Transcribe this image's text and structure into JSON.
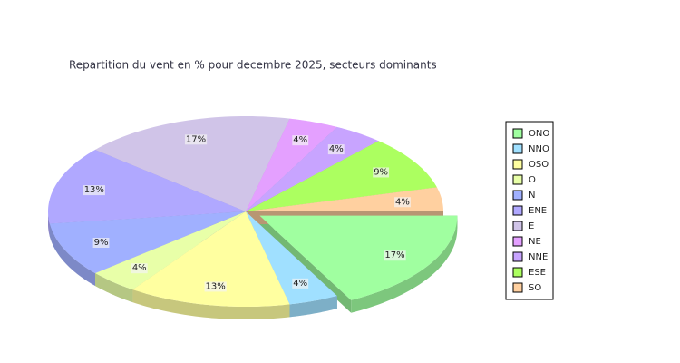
{
  "chart_data": {
    "type": "pie",
    "title": "Repartition du vent en % pour decembre 2025, secteurs dominants",
    "categories": [
      "ONO",
      "NNO",
      "OSO",
      "O",
      "N",
      "ENE",
      "E",
      "NE",
      "NNE",
      "ESE",
      "SO"
    ],
    "values": [
      17,
      4,
      13,
      4,
      9,
      13,
      17,
      4,
      4,
      9,
      4
    ],
    "value_labels": [
      "17%",
      "4%",
      "13%",
      "4%",
      "9%",
      "13%",
      "17%",
      "4%",
      "4%",
      "9%",
      "4%"
    ],
    "colors": [
      "#a0ffa0",
      "#a0e0ff",
      "#ffffa0",
      "#e8ffa8",
      "#a0b0ff",
      "#b0a8ff",
      "#d0c4e8",
      "#e4a0ff",
      "#c8a4ff",
      "#acff60",
      "#ffd0a0"
    ],
    "legend": "right"
  }
}
